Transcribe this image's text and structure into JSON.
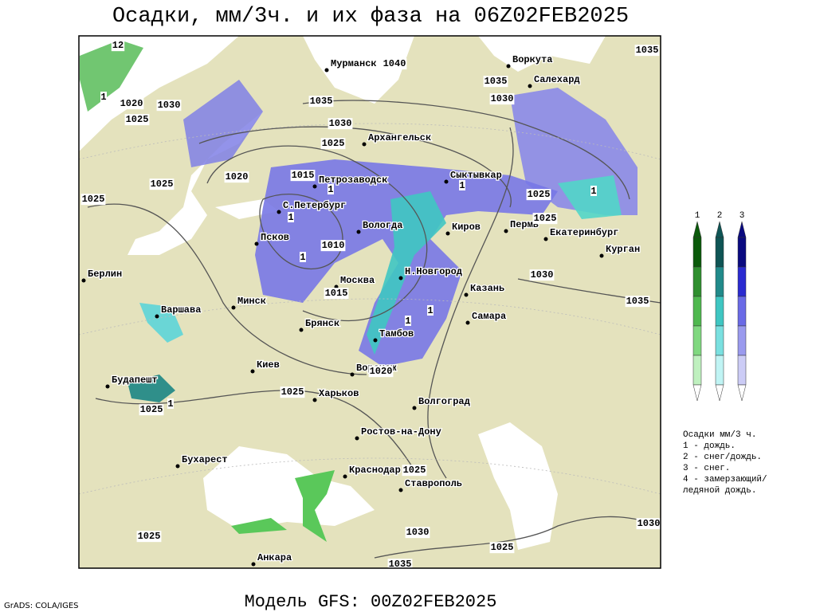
{
  "header": {
    "title": "Осадки, мм/3ч. и их фаза на 06Z02FEB2025"
  },
  "cities": [
    "Мурманск",
    "Воркута",
    "Салехард",
    "Архангельск",
    "Петрозаводск",
    "Сыктывкар",
    "С.Петербург",
    "Вологда",
    "Киров",
    "Пермь",
    "Екатеринбург",
    "Курган",
    "Псков",
    "Берлин",
    "Москва",
    "Н.Новгород",
    "Казань",
    "Варшава",
    "Минск",
    "Самара",
    "Брянск",
    "Тамбов",
    "Киев",
    "Воронеж",
    "Будапешт",
    "Харьков",
    "Волгоград",
    "Ростов-на-Дону",
    "Бухарест",
    "Краснодар",
    "Ставрополь",
    "Анкара"
  ],
  "isobar_labels": [
    "1035",
    "1040",
    "1035",
    "1035",
    "1030",
    "1030",
    "1020",
    "1025",
    "1030",
    "1025",
    "1025",
    "1020",
    "1015",
    "1025",
    "1025",
    "1025",
    "1010",
    "1030",
    "1015",
    "1035",
    "1020",
    "1025",
    "1025",
    "1025",
    "1030",
    "1025",
    "1030",
    "1025",
    "1035",
    "12"
  ],
  "phase_markers": [
    "1",
    "1",
    "1",
    "1",
    "1",
    "1",
    "1",
    "1",
    "1"
  ],
  "legend": {
    "columns": [
      "1",
      "2",
      "3"
    ],
    "lines": [
      "Осадки мм/3 ч.",
      "1 - дождь.",
      "2 - снег/дождь.",
      "3 - снег.",
      "4 - замерзающий/",
      "ледяной дождь."
    ]
  },
  "footer": {
    "model": "Модель GFS: 00Z02FEB2025",
    "credit": "GrADS: COLA/IGES"
  }
}
